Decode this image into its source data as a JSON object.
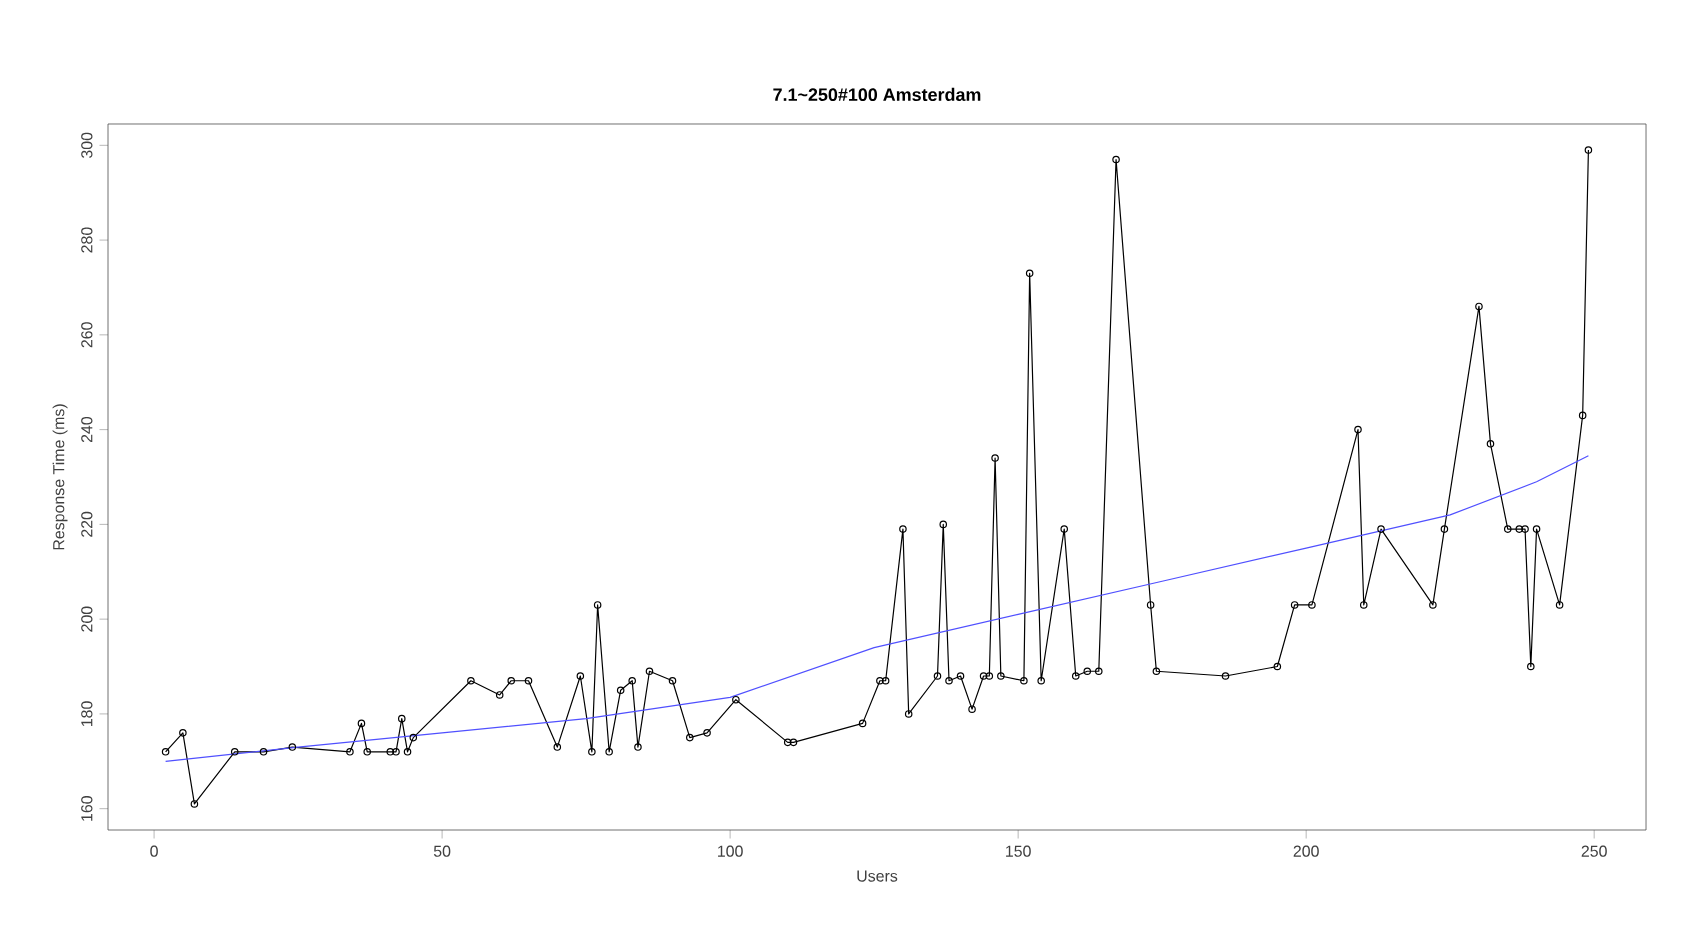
{
  "chart_data": {
    "type": "line",
    "title": "7.1~250#100 Amsterdam",
    "xlabel": "Users",
    "ylabel": "Response Time (ms)",
    "xlim": [
      -8,
      259
    ],
    "ylim": [
      155.5,
      304.5
    ],
    "xticks": [
      0,
      50,
      100,
      150,
      200,
      250
    ],
    "yticks": [
      160,
      180,
      200,
      220,
      240,
      260,
      280,
      300
    ],
    "marker": "circle",
    "line_style": "solid",
    "series": [
      {
        "color": "#000000",
        "x": [
          2,
          5,
          7,
          14,
          19,
          24,
          34,
          36,
          37,
          41,
          42,
          43,
          44,
          45,
          55,
          60,
          62,
          65,
          70,
          74,
          76,
          77,
          79,
          81,
          83,
          84,
          86,
          90,
          93,
          96,
          101,
          110,
          111,
          123,
          126,
          127,
          130,
          131,
          136,
          137,
          138,
          140,
          142,
          144,
          145,
          146,
          147,
          151,
          152,
          154,
          158,
          160,
          162,
          164,
          167,
          173,
          174,
          186,
          195,
          198,
          201,
          209,
          210,
          213,
          222,
          224,
          230,
          232,
          235,
          237,
          238,
          239,
          240,
          244,
          248,
          249
        ],
        "values": [
          172,
          176,
          161,
          172,
          172,
          173,
          172,
          178,
          172,
          172,
          172,
          179,
          172,
          175,
          187,
          184,
          187,
          187,
          173,
          188,
          172,
          203,
          172,
          185,
          187,
          173,
          189,
          187,
          175,
          176,
          183,
          174,
          174,
          178,
          187,
          187,
          219,
          180,
          188,
          220,
          187,
          188,
          181,
          188,
          188,
          234,
          188,
          187,
          273,
          187,
          219,
          188,
          189,
          189,
          297,
          203,
          189,
          188,
          190,
          203,
          203,
          240,
          203,
          219,
          203,
          219,
          266,
          237,
          219,
          219,
          219,
          190,
          219,
          203,
          243,
          299
        ]
      },
      {
        "type": "line",
        "marker": "none",
        "color": "#5050ff",
        "x": [
          2,
          25,
          50,
          75,
          100,
          125,
          150,
          175,
          200,
          225,
          240,
          249
        ],
        "values": [
          170,
          173,
          176,
          179,
          183.5,
          194,
          201,
          208,
          215,
          222,
          229,
          234.5
        ]
      }
    ]
  }
}
